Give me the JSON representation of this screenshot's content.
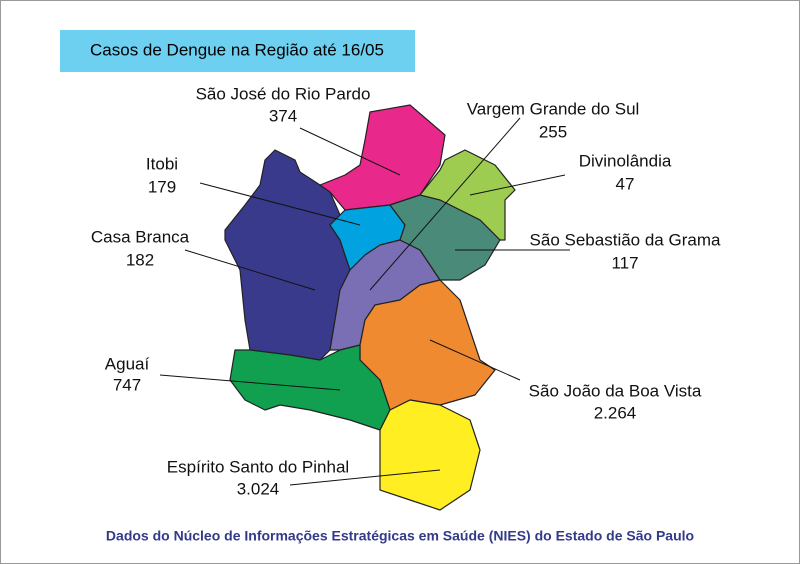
{
  "title": "Casos de Dengue na Região até 16/05",
  "footer": "Dados do Núcleo de Informações Estratégicas em Saúde (NIES) do Estado de São Paulo",
  "regions": [
    {
      "name": "São José do Rio Pardo",
      "cases": "374"
    },
    {
      "name": "Vargem Grande do Sul",
      "cases": "255"
    },
    {
      "name": "Divinolândia",
      "cases": "47"
    },
    {
      "name": "Itobi",
      "cases": "179"
    },
    {
      "name": "Casa Branca",
      "cases": "182"
    },
    {
      "name": "São Sebastião da Grama",
      "cases": "117"
    },
    {
      "name": "São João da Boa Vista",
      "cases": "2.264"
    },
    {
      "name": "Aguaí",
      "cases": "747"
    },
    {
      "name": "Espírito Santo do Pinhal",
      "cases": "3.024"
    }
  ]
}
